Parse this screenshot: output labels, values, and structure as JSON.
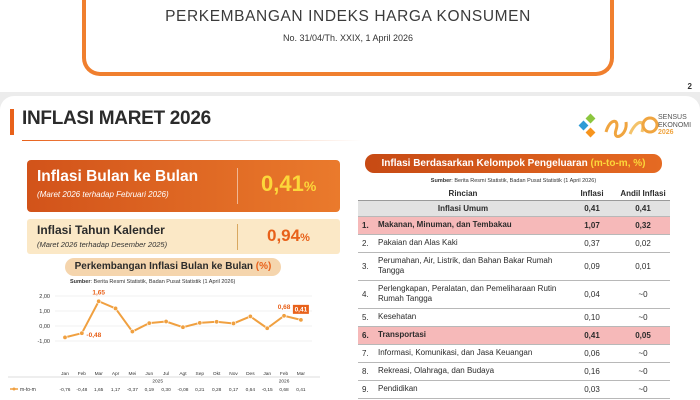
{
  "cover": {
    "title": "PERKEMBANGAN INDEKS HARGA KONSUMEN",
    "subtitle": "No. 31/04/Th. XXIX, 1 April 2026",
    "page_number": "2"
  },
  "slide": {
    "title": "INFLASI MARET 2026",
    "logo_text_1": "SENSUS",
    "logo_text_2": "EKONOMI",
    "logo_text_3": "2026"
  },
  "mtm": {
    "title": "Inflasi Bulan ke Bulan",
    "subtitle": "(Maret 2026 terhadap Februari 2026)",
    "value": "0,41",
    "unit": "%"
  },
  "ytd": {
    "title": "Inflasi Tahun Kalender",
    "subtitle": "(Maret 2026 terhadap Desember 2025)",
    "value": "0,94",
    "unit": "%"
  },
  "chart_header": {
    "title": "Perkembangan Inflasi Bulan ke Bulan ",
    "title_unit": "(%)",
    "source_label": "Sumber",
    "source_text": ": Berita Resmi Statistik, Badan Pusat Statistik (1 April 2026)"
  },
  "chart_data": {
    "type": "line",
    "series_name": "m-to-m",
    "categories": [
      "Jan",
      "Feb",
      "Mar",
      "Apr",
      "Mei",
      "Jun",
      "Jul",
      "Agt",
      "Sep",
      "Okt",
      "Nov",
      "Des",
      "Jan",
      "Feb",
      "Mar"
    ],
    "year_labels": [
      {
        "label": "2025",
        "index": 5.5
      },
      {
        "label": "2026",
        "index": 13
      }
    ],
    "values": [
      -0.76,
      -0.48,
      1.65,
      1.17,
      -0.37,
      0.19,
      0.3,
      -0.08,
      0.21,
      0.28,
      0.17,
      0.64,
      -0.15,
      0.68,
      0.41
    ],
    "value_labels": [
      "-0,76",
      "-0,48",
      "1,65",
      "1,17",
      "-0,37",
      "0,19",
      "0,30",
      "-0,08",
      "0,21",
      "0,28",
      "0,17",
      "0,64",
      "-0,15",
      "0,68",
      "0,41"
    ],
    "callouts": [
      {
        "index": 1,
        "label": "-0,48"
      },
      {
        "index": 2,
        "label": "1,65"
      },
      {
        "index": 13,
        "label": "0,68"
      },
      {
        "index": 14,
        "label": "0,41"
      }
    ],
    "yticks": [
      2.0,
      1.0,
      0.0,
      -1.0
    ],
    "ytick_labels": [
      "2,00",
      "1,00",
      "0,00",
      "-1,00"
    ],
    "ylim": [
      -1.0,
      2.0
    ],
    "color": "#f0a040",
    "highlight_color": "#e8611a"
  },
  "table": {
    "title": "Inflasi Berdasarkan Kelompok Pengeluaran ",
    "title_unit": "(m-to-m, %)",
    "source_label": "Sumber",
    "source_text": ": Berita Resmi Statistik, Badan Pusat Statistik (1 April 2026)",
    "headers": [
      "Rincian",
      "Inflasi",
      "Andil Inflasi"
    ],
    "general": {
      "label": "Inflasi Umum",
      "inflasi": "0,41",
      "andil": "0,41"
    },
    "rows": [
      {
        "no": "1.",
        "name": "Makanan, Minuman, dan Tembakau",
        "inflasi": "1,07",
        "andil": "0,32",
        "highlight": true
      },
      {
        "no": "2.",
        "name": "Pakaian dan Alas Kaki",
        "inflasi": "0,37",
        "andil": "0,02",
        "highlight": false
      },
      {
        "no": "3.",
        "name": "Perumahan, Air, Listrik, dan Bahan Bakar Rumah Tangga",
        "inflasi": "0,09",
        "andil": "0,01",
        "highlight": false
      },
      {
        "no": "4.",
        "name": "Perlengkapan, Peralatan, dan Pemeliharaan Rutin Rumah Tangga",
        "inflasi": "0,04",
        "andil": "~0",
        "highlight": false
      },
      {
        "no": "5.",
        "name": "Kesehatan",
        "inflasi": "0,10",
        "andil": "~0",
        "highlight": false
      },
      {
        "no": "6.",
        "name": "Transportasi",
        "inflasi": "0,41",
        "andil": "0,05",
        "highlight": true
      },
      {
        "no": "7.",
        "name": "Informasi, Komunikasi, dan Jasa Keuangan",
        "inflasi": "0,06",
        "andil": "~0",
        "highlight": false
      },
      {
        "no": "8.",
        "name": "Rekreasi, Olahraga, dan Budaya",
        "inflasi": "0,16",
        "andil": "~0",
        "highlight": false
      },
      {
        "no": "9.",
        "name": "Pendidikan",
        "inflasi": "0,03",
        "andil": "~0",
        "highlight": false
      }
    ]
  }
}
